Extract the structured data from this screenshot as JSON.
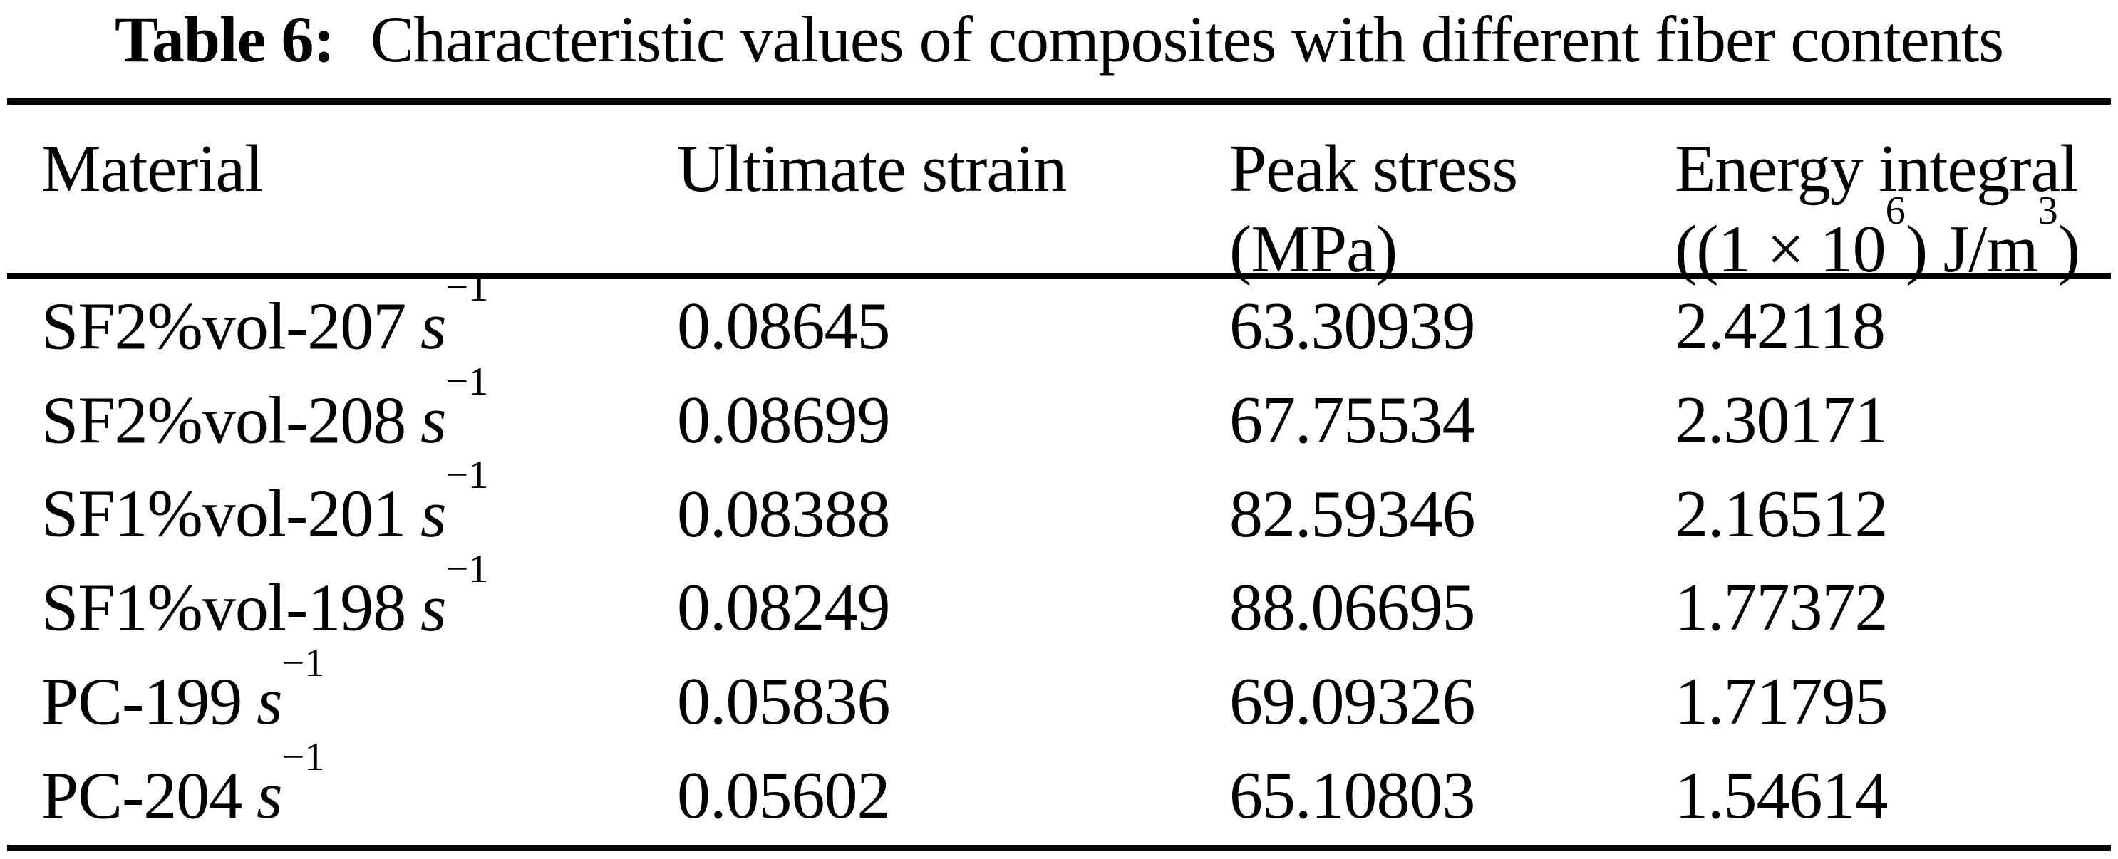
{
  "title": {
    "label": "Table 6:",
    "text": "Characteristic values of composites with different fiber contents"
  },
  "table": {
    "headers": {
      "material": "Material",
      "ultimate_strain": "Ultimate strain",
      "peak_stress_line1": "Peak stress",
      "peak_stress_line2": "(MPa)",
      "energy_line1": "Energy integral",
      "energy_line2_p1": "((1 × 10",
      "energy_line2_sup1": "6",
      "energy_line2_p2": ") J/m",
      "energy_line2_sup2": "3",
      "energy_line2_p3": ")"
    },
    "unit": {
      "var": "s",
      "exp": "−1"
    },
    "rows": [
      {
        "material": "SF2%vol-207",
        "ultimate_strain": "0.08645",
        "peak_stress": "63.30939",
        "energy_integral": "2.42118"
      },
      {
        "material": "SF2%vol-208",
        "ultimate_strain": "0.08699",
        "peak_stress": "67.75534",
        "energy_integral": "2.30171"
      },
      {
        "material": "SF1%vol-201",
        "ultimate_strain": "0.08388",
        "peak_stress": "82.59346",
        "energy_integral": "2.16512"
      },
      {
        "material": "SF1%vol-198",
        "ultimate_strain": "0.08249",
        "peak_stress": "88.06695",
        "energy_integral": "1.77372"
      },
      {
        "material": "PC-199",
        "ultimate_strain": "0.05836",
        "peak_stress": "69.09326",
        "energy_integral": "1.71795"
      },
      {
        "material": "PC-204",
        "ultimate_strain": "0.05602",
        "peak_stress": "65.10803",
        "energy_integral": "1.54614"
      }
    ]
  }
}
